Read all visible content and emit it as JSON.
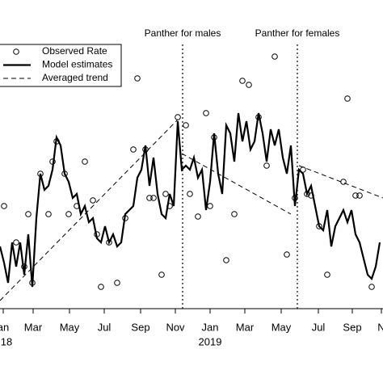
{
  "chart_data": {
    "type": "line",
    "xlim": [
      0,
      474
    ],
    "ylim": [
      0,
      342
    ],
    "xticks": [
      {
        "value": 4,
        "label": "an"
      },
      {
        "value": 41,
        "label": "Mar"
      },
      {
        "value": 86,
        "label": "May"
      },
      {
        "value": 129,
        "label": "Jul"
      },
      {
        "value": 174,
        "label": "Sep"
      },
      {
        "value": 217,
        "label": "Nov"
      },
      {
        "value": 260,
        "label": "Jan"
      },
      {
        "value": 303,
        "label": "Mar"
      },
      {
        "value": 348,
        "label": "May"
      },
      {
        "value": 394,
        "label": "Jul"
      },
      {
        "value": 436,
        "label": "Sep"
      },
      {
        "value": 472,
        "label": "N"
      }
    ],
    "year_labels": [
      {
        "value": 8,
        "label": "18"
      },
      {
        "value": 260,
        "label": "2019"
      }
    ],
    "events": [
      {
        "x": 226,
        "label": "Panther for males"
      },
      {
        "x": 368,
        "label": "Panther for females"
      }
    ],
    "legend": "top-left",
    "series": [
      {
        "name": "Observed Rate",
        "kind": "points",
        "color": "#000000",
        "x": [
          5,
          20,
          30,
          35,
          40,
          50,
          60,
          65,
          70,
          80,
          85,
          95,
          105,
          115,
          120,
          125,
          135,
          145,
          155,
          165,
          170,
          180,
          185,
          190,
          200,
          205,
          210,
          220,
          230,
          235,
          245,
          255,
          260,
          265,
          280,
          290,
          300,
          308,
          320,
          330,
          340,
          355,
          365,
          375,
          380,
          385,
          395,
          405,
          425,
          430,
          440,
          445,
          460
        ],
        "values": [
          127,
          82,
          52,
          117,
          32,
          167,
          117,
          182,
          207,
          167,
          117,
          127,
          182,
          134,
          92,
          27,
          82,
          32,
          112,
          197,
          285,
          197,
          137,
          137,
          42,
          142,
          127,
          237,
          227,
          142,
          114,
          242,
          127,
          212,
          60,
          117,
          282,
          277,
          237,
          177,
          312,
          67,
          137,
          172,
          142,
          140,
          102,
          42,
          157,
          260,
          140,
          140,
          27
        ]
      },
      {
        "name": "Model estimates",
        "kind": "solid",
        "color": "#000000",
        "x": [
          0,
          5,
          10,
          15,
          20,
          25,
          30,
          35,
          40,
          45,
          50,
          55,
          60,
          65,
          70,
          75,
          80,
          85,
          90,
          95,
          100,
          105,
          110,
          115,
          120,
          125,
          130,
          135,
          140,
          145,
          150,
          155,
          160,
          165,
          170,
          175,
          180,
          185,
          190,
          195,
          200,
          205,
          210,
          215,
          220,
          225,
          230,
          235,
          240,
          245,
          250,
          255,
          260,
          265,
          270,
          275,
          280,
          285,
          290,
          295,
          300,
          305,
          310,
          315,
          320,
          325,
          330,
          335,
          340,
          345,
          350,
          355,
          360,
          365,
          370,
          375,
          380,
          385,
          390,
          395,
          400,
          405,
          410,
          415,
          420,
          425,
          430,
          435,
          440,
          445,
          450,
          455,
          460,
          465,
          470
        ],
        "values": [
          77,
          57,
          32,
          82,
          52,
          82,
          42,
          92,
          27,
          112,
          167,
          147,
          152,
          172,
          212,
          202,
          167,
          157,
          137,
          142,
          117,
          127,
          107,
          112,
          87,
          82,
          102,
          82,
          92,
          77,
          82,
          117,
          122,
          127,
          162,
          172,
          202,
          152,
          187,
          142,
          117,
          112,
          142,
          127,
          232,
          172,
          177,
          172,
          187,
          162,
          172,
          122,
          157,
          217,
          167,
          142,
          227,
          217,
          182,
          242,
          207,
          232,
          197,
          207,
          242,
          217,
          182,
          222,
          202,
          222,
          187,
          167,
          202,
          127,
          172,
          167,
          142,
          152,
          127,
          102,
          97,
          122,
          77,
          102,
          112,
          122,
          107,
          122,
          92,
          82,
          62,
          42,
          37,
          52,
          82
        ]
      },
      {
        "name": "Averaged trend",
        "kind": "dashed",
        "color": "#000000",
        "x": [
          0,
          220,
          221,
          225,
          360,
          366,
          370,
          474
        ],
        "values": [
          10,
          234,
          null,
          192,
          117,
          null,
          177,
          137
        ]
      }
    ]
  }
}
